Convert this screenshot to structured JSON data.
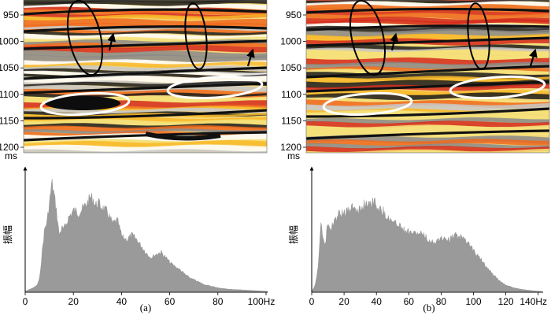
{
  "panels": [
    {
      "caption": "(a)",
      "section": {
        "time_ticks": [
          "950",
          "1000",
          "1050",
          "1100",
          "1150",
          "1200"
        ],
        "unit_label": "ms"
      },
      "spectrum": {
        "y_label": "振幅",
        "x_ticks": [
          "0",
          "20",
          "40",
          "60",
          "80",
          "100Hz"
        ]
      }
    },
    {
      "caption": "(b)",
      "section": {
        "time_ticks": [
          "950",
          "1000",
          "1050",
          "1100",
          "1150",
          "1200"
        ],
        "unit_label": "ms"
      },
      "spectrum": {
        "y_label": "振幅",
        "x_ticks": [
          "0",
          "20",
          "40",
          "60",
          "80",
          "100",
          "120",
          "140Hz"
        ]
      }
    }
  ],
  "chart_data": [
    {
      "type": "area",
      "title": "(a)",
      "xlabel": "Hz",
      "ylabel": "振幅",
      "xlim": [
        0,
        100
      ],
      "ylim": [
        0,
        1
      ],
      "x": [
        0,
        2,
        4,
        5,
        6,
        7,
        8,
        9,
        10,
        11,
        12,
        13,
        14,
        15,
        16,
        18,
        20,
        22,
        24,
        26,
        27,
        28,
        29,
        30,
        32,
        34,
        36,
        38,
        40,
        42,
        44,
        46,
        48,
        50,
        52,
        54,
        56,
        58,
        60,
        62,
        64,
        66,
        68,
        70,
        72,
        74,
        76,
        78,
        80,
        84,
        88,
        92,
        96,
        100
      ],
      "values": [
        0,
        0.02,
        0.04,
        0.06,
        0.12,
        0.35,
        0.55,
        0.62,
        0.78,
        0.97,
        0.85,
        0.7,
        0.5,
        0.56,
        0.55,
        0.66,
        0.72,
        0.7,
        0.74,
        0.8,
        0.84,
        0.82,
        0.76,
        0.79,
        0.74,
        0.7,
        0.6,
        0.63,
        0.48,
        0.46,
        0.5,
        0.46,
        0.4,
        0.34,
        0.3,
        0.33,
        0.35,
        0.3,
        0.25,
        0.22,
        0.19,
        0.15,
        0.12,
        0.1,
        0.08,
        0.06,
        0.05,
        0.04,
        0.03,
        0.02,
        0.015,
        0.01,
        0.005,
        0
      ]
    },
    {
      "type": "area",
      "title": "(b)",
      "xlabel": "Hz",
      "ylabel": "振幅",
      "xlim": [
        0,
        145
      ],
      "ylim": [
        0,
        1
      ],
      "x": [
        0,
        2,
        4,
        5,
        6,
        7,
        8,
        9,
        10,
        11,
        12,
        13,
        14,
        15,
        16,
        18,
        20,
        22,
        24,
        26,
        28,
        30,
        32,
        34,
        36,
        38,
        40,
        42,
        44,
        46,
        48,
        50,
        52,
        54,
        56,
        58,
        60,
        62,
        64,
        66,
        68,
        70,
        72,
        74,
        76,
        78,
        80,
        82,
        84,
        86,
        88,
        90,
        92,
        94,
        96,
        98,
        100,
        102,
        104,
        106,
        108,
        110,
        112,
        114,
        116,
        118,
        120,
        122,
        124,
        126,
        128,
        130,
        132,
        134,
        136,
        138,
        140,
        142,
        145
      ],
      "values": [
        0,
        0.05,
        0.2,
        0.4,
        0.66,
        0.48,
        0.4,
        0.45,
        0.62,
        0.57,
        0.55,
        0.58,
        0.6,
        0.64,
        0.65,
        0.7,
        0.68,
        0.72,
        0.7,
        0.75,
        0.74,
        0.72,
        0.76,
        0.78,
        0.8,
        0.79,
        0.8,
        0.74,
        0.72,
        0.7,
        0.66,
        0.63,
        0.6,
        0.61,
        0.58,
        0.55,
        0.54,
        0.53,
        0.52,
        0.51,
        0.52,
        0.5,
        0.48,
        0.45,
        0.44,
        0.45,
        0.46,
        0.47,
        0.48,
        0.46,
        0.47,
        0.5,
        0.49,
        0.48,
        0.46,
        0.44,
        0.4,
        0.37,
        0.33,
        0.3,
        0.26,
        0.22,
        0.19,
        0.16,
        0.13,
        0.1,
        0.08,
        0.06,
        0.05,
        0.04,
        0.03,
        0.025,
        0.02,
        0.015,
        0.012,
        0.008,
        0.005,
        0.003,
        0
      ]
    }
  ]
}
